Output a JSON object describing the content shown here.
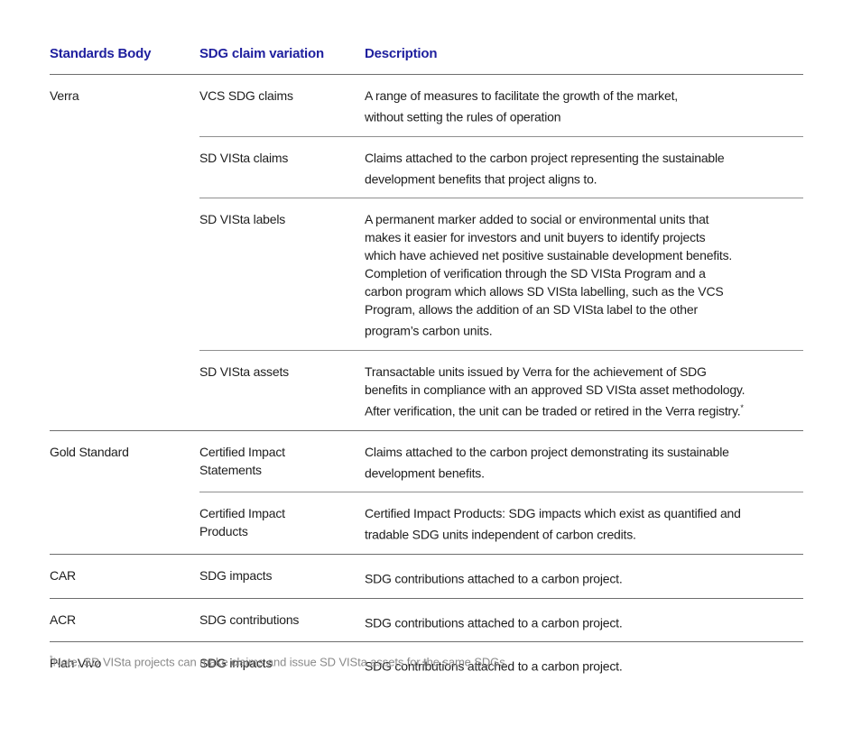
{
  "table": {
    "columns": [
      "Standards Body",
      "SDG claim variation",
      "Description"
    ],
    "groups": [
      {
        "body": "Verra",
        "rows": [
          {
            "variation": "VCS SDG claims",
            "description": "A range of measures to facilitate the growth of the market,\nwithout setting the rules of operation"
          },
          {
            "variation": "SD VISta claims",
            "description": "Claims attached to the carbon project representing the sustainable\ndevelopment benefits that project aligns to."
          },
          {
            "variation": "SD VISta labels",
            "description": "A permanent marker added to social or environmental units that\nmakes it easier for investors and unit buyers to identify projects\nwhich have achieved net positive sustainable development benefits.\nCompletion of verification through the SD VISta Program and a\ncarbon program which allows SD VISta labelling, such as the VCS\nProgram, allows the addition of an SD VISta label to the other\nprogram’s carbon units."
          },
          {
            "variation": "SD VISta assets",
            "description": "Transactable units issued by Verra for the achievement of SDG\nbenefits in compliance with an approved SD VISta asset methodology.\nAfter verification, the unit can be traded or retired in the Verra registry.",
            "sup": "*"
          }
        ]
      },
      {
        "body": "Gold Standard",
        "rows": [
          {
            "variation": "Certified Impact\nStatements",
            "description": "Claims attached to the carbon project demonstrating its sustainable\ndevelopment benefits."
          },
          {
            "variation": "Certified Impact\nProducts",
            "description": "Certified Impact Products: SDG impacts which exist as quantified and\ntradable SDG units independent of carbon credits."
          }
        ]
      },
      {
        "body": "CAR",
        "rows": [
          {
            "variation": "SDG impacts",
            "description": "SDG contributions attached to a carbon project."
          }
        ]
      },
      {
        "body": "ACR",
        "rows": [
          {
            "variation": "SDG contributions",
            "description": "SDG contributions attached to a carbon project."
          }
        ]
      },
      {
        "body": "Plan Vivo",
        "rows": [
          {
            "variation": "SDG impacts",
            "description": "SDG contributions attached to a carbon project."
          }
        ]
      }
    ]
  },
  "footnote": {
    "marker": "*",
    "text": "Note, SD VISta projects can make claims and issue SD VISta assets for the same SDGs."
  },
  "colors": {
    "header": "#1e1f9e",
    "body_text": "#1d1d1d",
    "rule_major": "#6e6e6e",
    "rule_minor": "#8f8f8f",
    "footnote": "#8a8a8a",
    "page_bg": "#ffffff"
  }
}
